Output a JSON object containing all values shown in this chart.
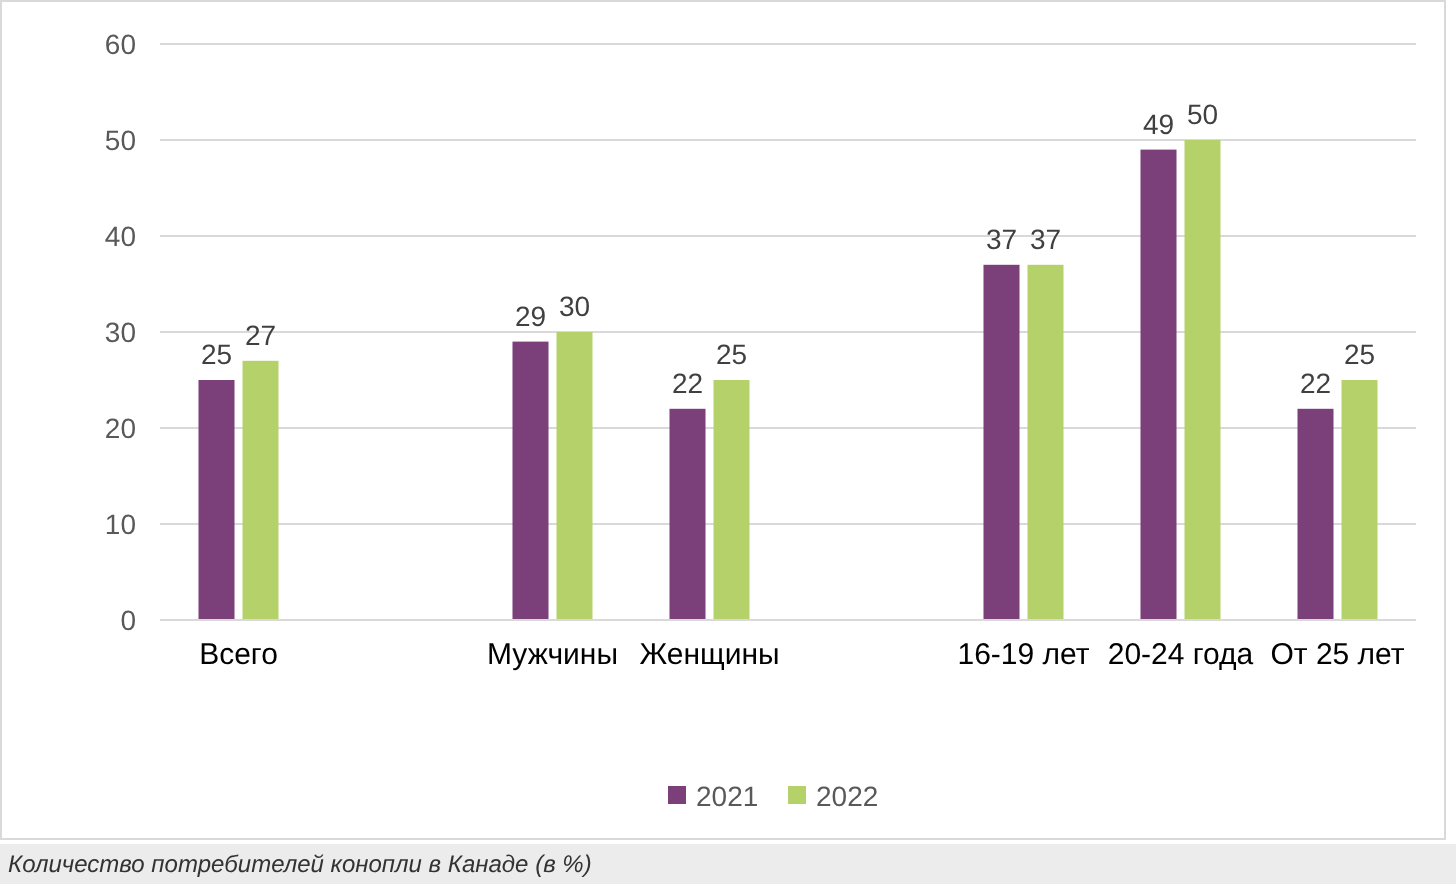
{
  "chart_data": {
    "type": "bar",
    "categories": [
      "Всего",
      null,
      "Мужчины",
      "Женщины",
      null,
      "16-19 лет",
      "20-24 года",
      "От 25 лет"
    ],
    "series": [
      {
        "name": "2021",
        "color": "#7b3f7a",
        "values": [
          25,
          null,
          29,
          22,
          null,
          37,
          49,
          22
        ]
      },
      {
        "name": "2022",
        "color": "#b5d16a",
        "values": [
          27,
          null,
          30,
          25,
          null,
          37,
          50,
          25
        ]
      }
    ],
    "ylim": [
      0,
      60
    ],
    "yticks": [
      0,
      10,
      20,
      30,
      40,
      50,
      60
    ],
    "grid": "y",
    "legend": "bottom",
    "data_labels": true,
    "annotations": [
      "Количество потребителей конопли в Канаде (в %)"
    ]
  }
}
